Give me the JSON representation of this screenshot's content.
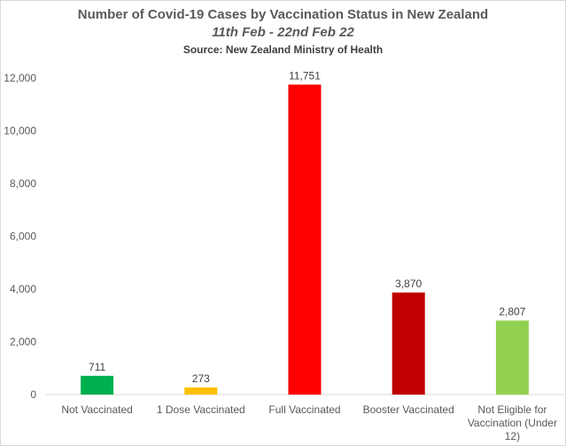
{
  "chart_data": {
    "type": "bar",
    "title": "Number of Covid-19 Cases by Vaccination Status in New Zealand",
    "subtitle": "11th Feb - 22nd Feb 22",
    "source": "Source: New Zealand Ministry of Health",
    "categories": [
      [
        "Not Vaccinated"
      ],
      [
        "1 Dose Vaccinated"
      ],
      [
        "Full Vaccinated"
      ],
      [
        "Booster Vaccinated"
      ],
      [
        "Not Eligible for",
        "Vaccination (Under",
        "12)"
      ]
    ],
    "values": [
      711,
      273,
      11751,
      3870,
      2807
    ],
    "value_labels": [
      "711",
      "273",
      "11,751",
      "3,870",
      "2,807"
    ],
    "colors": [
      "#00b050",
      "#ffc000",
      "#ff0000",
      "#c00000",
      "#92d050"
    ],
    "ylim": [
      0,
      12000
    ],
    "yticks": [
      0,
      2000,
      4000,
      6000,
      8000,
      10000,
      12000
    ],
    "ytick_labels": [
      "0",
      "2,000",
      "4,000",
      "6,000",
      "8,000",
      "10,000",
      "12,000"
    ],
    "grid": false,
    "xlabel": "",
    "ylabel": ""
  }
}
